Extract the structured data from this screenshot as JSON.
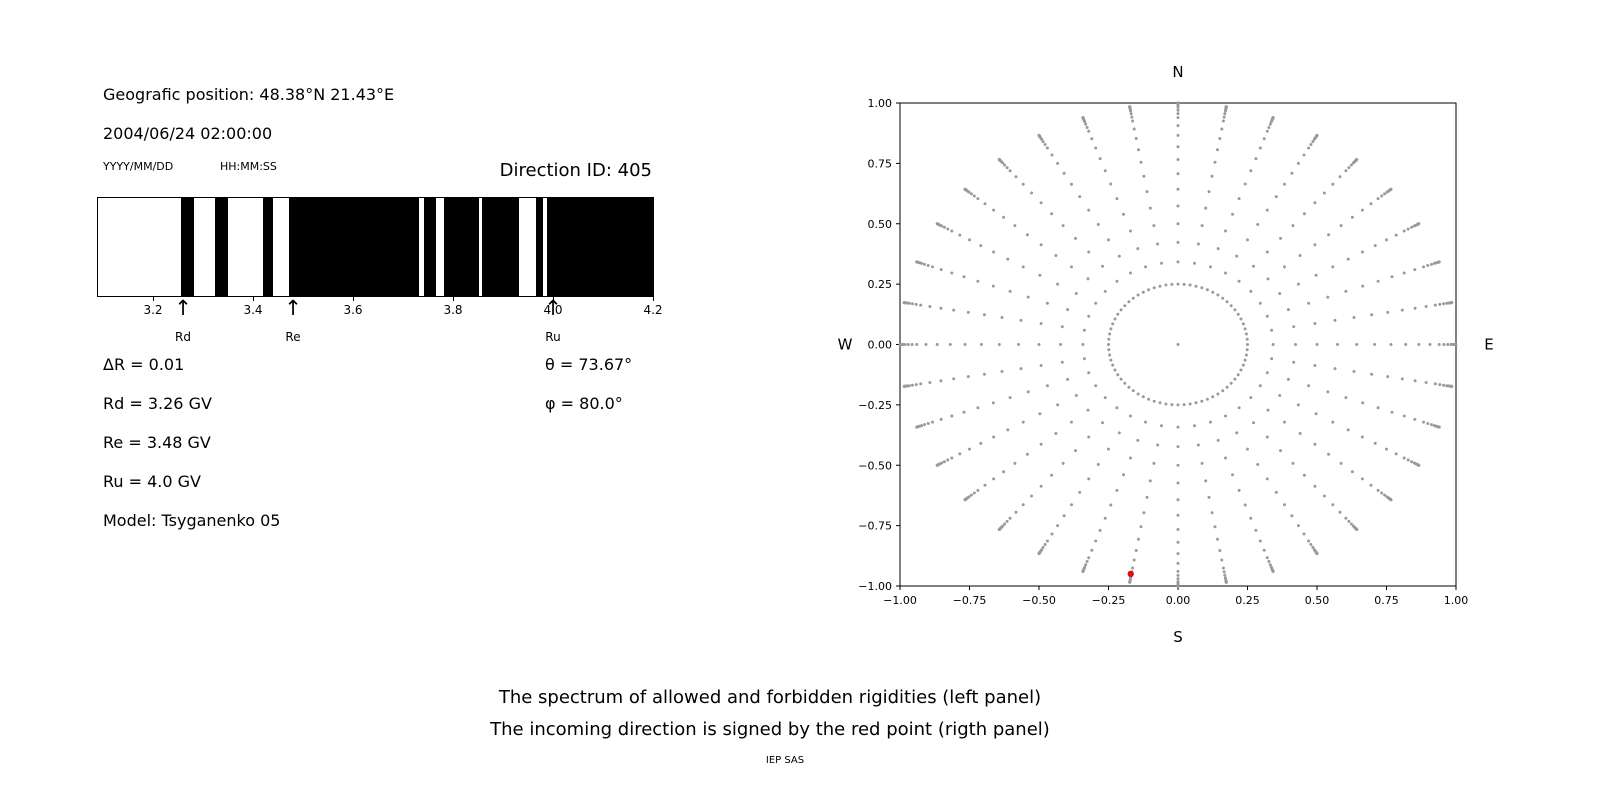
{
  "header": {
    "geo_position": "Geografic position: 48.38°N 21.43°E",
    "datetime": "2004/06/24 02:00:00",
    "date_format_label": "YYYY/MM/DD",
    "time_format_label": "HH:MM:SS",
    "direction_id": "Direction ID: 405"
  },
  "params": {
    "delta_r": "ΔR = 0.01",
    "rd": "Rd = 3.26 GV",
    "re": "Re = 3.48 GV",
    "ru": "Ru = 4.0 GV",
    "model": "Model: Tsyganenko 05",
    "theta": "θ = 73.67°",
    "phi": "φ = 80.0°"
  },
  "caption": {
    "line1": "The spectrum of allowed and forbidden rigidities (left panel)",
    "line2": "The incoming direction is signed by the red point (rigth panel)",
    "credit": "IEP SAS"
  },
  "chart_data": [
    {
      "name": "rigidity_spectrum",
      "type": "bar",
      "units": "GV",
      "xlim": [
        3.09,
        4.2
      ],
      "xticks": [
        3.2,
        3.4,
        3.6,
        3.8,
        4.0,
        4.2
      ],
      "allowed_color": "#ffffff",
      "forbidden_color": "#000000",
      "forbidden_bands": [
        [
          3.256,
          3.281
        ],
        [
          3.324,
          3.349
        ],
        [
          3.419,
          3.439
        ],
        [
          3.472,
          3.731
        ],
        [
          3.742,
          3.766
        ],
        [
          3.782,
          3.851
        ],
        [
          3.858,
          3.931
        ],
        [
          3.966,
          3.979
        ],
        [
          3.988,
          4.2
        ]
      ],
      "marker_arrow_glyph": "↑",
      "markers": [
        {
          "label": "Rd",
          "value": 3.26
        },
        {
          "label": "Re",
          "value": 3.48
        },
        {
          "label": "Ru",
          "value": 4.0
        }
      ]
    },
    {
      "name": "incoming_direction",
      "type": "scatter",
      "xlim": [
        -1,
        1
      ],
      "ylim": [
        -1,
        1
      ],
      "xticks": [
        -1.0,
        -0.75,
        -0.5,
        -0.25,
        0.0,
        0.25,
        0.5,
        0.75,
        1.0
      ],
      "yticks": [
        -1.0,
        -0.75,
        -0.5,
        -0.25,
        0.0,
        0.25,
        0.5,
        0.75,
        1.0
      ],
      "compass": {
        "top": "N",
        "bottom": "S",
        "left": "W",
        "right": "E"
      },
      "direction_grid": {
        "dot_color": "#9a9a9a",
        "center_dot": true,
        "inner_ring": {
          "radius": 0.25,
          "dots": 72
        },
        "azimuth_step_deg": 10,
        "spoke_zenith_deg": [
          20,
          25,
          30,
          35,
          40,
          45,
          50,
          55,
          60,
          65,
          70,
          73,
          76,
          79,
          81,
          83,
          85,
          86,
          87,
          88,
          89,
          90
        ]
      },
      "red_point": {
        "x": -0.17,
        "y": -0.95,
        "color": "#dd1111"
      }
    }
  ]
}
